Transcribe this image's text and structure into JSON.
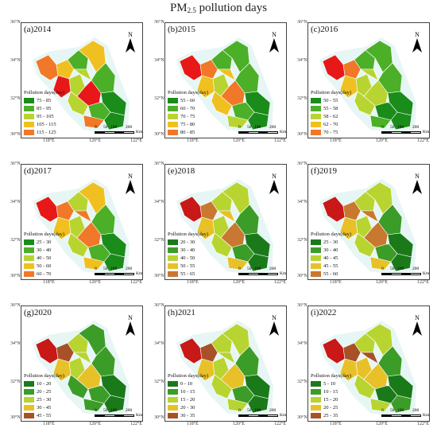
{
  "title": {
    "main": "PM",
    "sub": "2.5",
    "rest": " pollution days"
  },
  "north_label": "N",
  "y_ticks": [
    "36°N",
    "34°N",
    "32°N",
    "30°N"
  ],
  "x_ticks": [
    "118°E",
    "120°E",
    "122°E"
  ],
  "scale": {
    "ticks": [
      "0",
      "50",
      "100",
      "200"
    ],
    "unit": "Km"
  },
  "legend_title": "Pollution days(day)",
  "panels": [
    {
      "id": "a",
      "label": "(a)2014",
      "legend": [
        {
          "range": "75 - 85",
          "color": "#1a8c1a"
        },
        {
          "range": "85 - 95",
          "color": "#4caf28"
        },
        {
          "range": "95 - 105",
          "color": "#b8d430"
        },
        {
          "range": "105 - 115",
          "color": "#f0c020"
        },
        {
          "range": "115 - 125",
          "color": "#f07828"
        },
        {
          "range": "125 - 135",
          "color": "#e81818"
        }
      ],
      "regions": [
        4,
        3,
        5,
        2,
        1,
        2,
        3,
        1,
        0,
        5,
        2,
        1,
        0,
        4
      ]
    },
    {
      "id": "b",
      "label": "(b)2015",
      "legend": [
        {
          "range": "55 - 60",
          "color": "#1a8c1a"
        },
        {
          "range": "60 - 70",
          "color": "#4caf28"
        },
        {
          "range": "70 - 75",
          "color": "#b8d430"
        },
        {
          "range": "75 - 80",
          "color": "#f0c020"
        },
        {
          "range": "80 - 85",
          "color": "#f07828"
        },
        {
          "range": "85 - 90",
          "color": "#e81818"
        }
      ],
      "regions": [
        5,
        4,
        3,
        2,
        1,
        3,
        1,
        1,
        0,
        4,
        3,
        1,
        0,
        2
      ]
    },
    {
      "id": "c",
      "label": "(c)2016",
      "legend": [
        {
          "range": "50 - 55",
          "color": "#1a8c1a"
        },
        {
          "range": "55 - 58",
          "color": "#4caf28"
        },
        {
          "range": "58 - 62",
          "color": "#b8d430"
        },
        {
          "range": "62 - 70",
          "color": "#f0c020"
        },
        {
          "range": "70 - 75",
          "color": "#f07828"
        },
        {
          "range": "75 - 80",
          "color": "#e81818"
        }
      ],
      "regions": [
        5,
        4,
        3,
        2,
        1,
        2,
        1,
        1,
        0,
        2,
        2,
        0,
        0,
        1
      ]
    },
    {
      "id": "d",
      "label": "(d)2017",
      "legend": [
        {
          "range": "25 - 30",
          "color": "#1a8c1a"
        },
        {
          "range": "30 - 40",
          "color": "#4caf28"
        },
        {
          "range": "40 - 50",
          "color": "#b8d430"
        },
        {
          "range": "50 - 60",
          "color": "#f0c020"
        },
        {
          "range": "60 - 70",
          "color": "#f07828"
        },
        {
          "range": "70 - 100",
          "color": "#e81818"
        }
      ],
      "regions": [
        5,
        4,
        3,
        2,
        2,
        4,
        3,
        1,
        0,
        4,
        2,
        1,
        0,
        3
      ]
    },
    {
      "id": "e",
      "label": "(e)2018",
      "legend": [
        {
          "range": "20 - 30",
          "color": "#1a7a1a"
        },
        {
          "range": "30 - 40",
          "color": "#3c9c28"
        },
        {
          "range": "40 - 50",
          "color": "#b8d430"
        },
        {
          "range": "50 - 55",
          "color": "#e8c028"
        },
        {
          "range": "55 - 65",
          "color": "#c87830"
        },
        {
          "range": "65 - 80",
          "color": "#c81818"
        }
      ],
      "regions": [
        5,
        4,
        3,
        2,
        2,
        3,
        2,
        1,
        0,
        4,
        2,
        1,
        0,
        3
      ]
    },
    {
      "id": "f",
      "label": "(f)2019",
      "legend": [
        {
          "range": "25 - 30",
          "color": "#1a7a1a"
        },
        {
          "range": "30 - 40",
          "color": "#3c9c28"
        },
        {
          "range": "40 - 45",
          "color": "#b8d430"
        },
        {
          "range": "45 - 55",
          "color": "#e8c028"
        },
        {
          "range": "55 - 60",
          "color": "#c87830"
        },
        {
          "range": "60 - 75",
          "color": "#c81818"
        }
      ],
      "regions": [
        5,
        4,
        3,
        2,
        2,
        4,
        2,
        1,
        0,
        4,
        2,
        1,
        0,
        3
      ]
    },
    {
      "id": "g",
      "label": "(g)2020",
      "legend": [
        {
          "range": "10 - 20",
          "color": "#1a7a1a"
        },
        {
          "range": "20 - 25",
          "color": "#3c9c28"
        },
        {
          "range": "25 - 30",
          "color": "#b8d430"
        },
        {
          "range": "30 - 45",
          "color": "#e8c028"
        },
        {
          "range": "45 - 55",
          "color": "#a85028"
        },
        {
          "range": "55 - 60",
          "color": "#c81818"
        }
      ],
      "regions": [
        5,
        4,
        3,
        2,
        2,
        2,
        1,
        1,
        0,
        3,
        1,
        1,
        0,
        1
      ]
    },
    {
      "id": "h",
      "label": "(h)2021",
      "legend": [
        {
          "range": "0 - 10",
          "color": "#1a7a1a"
        },
        {
          "range": "10 - 15",
          "color": "#3c9c28"
        },
        {
          "range": "15 - 20",
          "color": "#b8d430"
        },
        {
          "range": "20 - 30",
          "color": "#e8c028"
        },
        {
          "range": "30 - 35",
          "color": "#a85028"
        },
        {
          "range": "35 - 40",
          "color": "#c81818"
        }
      ],
      "regions": [
        5,
        4,
        3,
        2,
        2,
        2,
        2,
        1,
        0,
        3,
        2,
        1,
        0,
        2
      ]
    },
    {
      "id": "i",
      "label": "(i)2022",
      "legend": [
        {
          "range": "5 - 10",
          "color": "#1a7a1a"
        },
        {
          "range": "10 - 15",
          "color": "#3c9c28"
        },
        {
          "range": "15 - 20",
          "color": "#b8d430"
        },
        {
          "range": "20 - 25",
          "color": "#e8c028"
        },
        {
          "range": "25 - 35",
          "color": "#a85028"
        },
        {
          "range": "35 - 40",
          "color": "#c81818"
        }
      ],
      "regions": [
        5,
        4,
        3,
        3,
        2,
        4,
        2,
        1,
        0,
        3,
        2,
        0,
        1,
        2
      ]
    }
  ]
}
